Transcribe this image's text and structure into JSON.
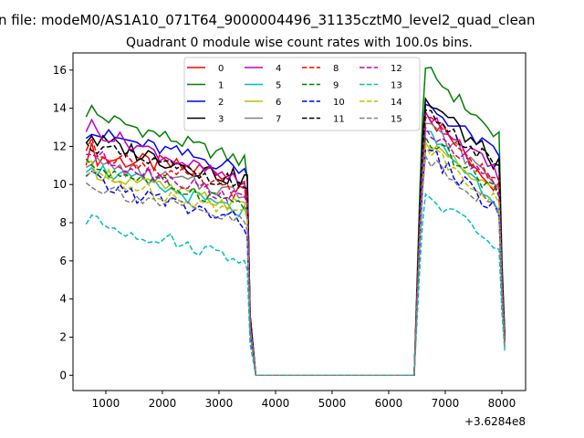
{
  "figure": {
    "suptitle": "n file: modeM0/AS1A10_071T64_9000004496_31135cztM0_level2_quad_clean",
    "x_offset_label": "+3.6284e8"
  },
  "chart_data": {
    "type": "line",
    "title": "Quadrant 0 module wise count rates with 100.0s bins.",
    "xlabel": "",
    "ylabel": "",
    "xlim": [
      420,
      8420
    ],
    "ylim": [
      -0.8,
      16.9
    ],
    "x_ticks": [
      1000,
      2000,
      3000,
      4000,
      5000,
      6000,
      7000,
      8000
    ],
    "y_ticks": [
      0,
      2,
      4,
      6,
      8,
      10,
      12,
      14,
      16
    ],
    "grid": false,
    "legend": {
      "placement": "top-center",
      "columns": 4
    },
    "series": [
      {
        "name": "0",
        "color": "#ff0000",
        "dash": "solid",
        "base": 11.5,
        "amp": 0.5,
        "end": 10.5,
        "drop": 8.8,
        "peak": 13.8,
        "dip": 9.8,
        "last": 2.0
      },
      {
        "name": "1",
        "color": "#008000",
        "dash": "solid",
        "base": 13.8,
        "amp": 0.4,
        "end": 11.2,
        "drop": 10.3,
        "peak": 16.1,
        "dip": 12.4,
        "last": 2.2
      },
      {
        "name": "2",
        "color": "#0000ff",
        "dash": "solid",
        "base": 12.8,
        "amp": 0.4,
        "end": 10.8,
        "drop": 10.4,
        "peak": 14.2,
        "dip": 11.5,
        "last": 2.0
      },
      {
        "name": "3",
        "color": "#000000",
        "dash": "solid",
        "base": 12.4,
        "amp": 0.5,
        "end": 10.2,
        "drop": 10.5,
        "peak": 14.5,
        "dip": 11.0,
        "last": 2.2
      },
      {
        "name": "4",
        "color": "#bf00bf",
        "dash": "solid",
        "base": 13.0,
        "amp": 0.4,
        "end": 10.0,
        "drop": 9.5,
        "peak": 13.8,
        "dip": 10.5,
        "last": 1.8
      },
      {
        "name": "5",
        "color": "#00bfbf",
        "dash": "solid",
        "base": 11.0,
        "amp": 0.4,
        "end": 8.5,
        "drop": 8.2,
        "peak": 12.8,
        "dip": 9.0,
        "last": 1.4
      },
      {
        "name": "6",
        "color": "#bfbf00",
        "dash": "solid",
        "base": 10.8,
        "amp": 0.4,
        "end": 8.8,
        "drop": 8.3,
        "peak": 12.2,
        "dip": 9.5,
        "last": 1.6
      },
      {
        "name": "7",
        "color": "#808080",
        "dash": "solid",
        "base": 11.2,
        "amp": 0.4,
        "end": 9.5,
        "drop": 9.2,
        "peak": 13.2,
        "dip": 10.0,
        "last": 1.8
      },
      {
        "name": "8",
        "color": "#ff0000",
        "dash": "dashed",
        "base": 11.9,
        "amp": 0.4,
        "end": 9.5,
        "drop": 9.0,
        "peak": 13.5,
        "dip": 10.0,
        "last": 1.8
      },
      {
        "name": "9",
        "color": "#008000",
        "dash": "dashed",
        "base": 11.0,
        "amp": 0.4,
        "end": 9.0,
        "drop": 8.8,
        "peak": 12.5,
        "dip": 9.5,
        "last": 1.7
      },
      {
        "name": "10",
        "color": "#0000ff",
        "dash": "dashed",
        "base": 10.2,
        "amp": 0.5,
        "end": 8.0,
        "drop": 7.2,
        "peak": 11.8,
        "dip": 8.5,
        "last": 1.6
      },
      {
        "name": "11",
        "color": "#000000",
        "dash": "dashed",
        "base": 12.0,
        "amp": 0.4,
        "end": 10.0,
        "drop": 9.8,
        "peak": 13.9,
        "dip": 10.8,
        "last": 2.0
      },
      {
        "name": "12",
        "color": "#bf00bf",
        "dash": "dashed",
        "base": 11.6,
        "amp": 0.4,
        "end": 9.2,
        "drop": 8.9,
        "peak": 13.0,
        "dip": 9.8,
        "last": 1.8
      },
      {
        "name": "13",
        "color": "#00bfbf",
        "dash": "dashed",
        "base": 8.1,
        "amp": 0.4,
        "end": 6.1,
        "drop": 5.5,
        "peak": 9.5,
        "dip": 6.7,
        "last": 1.3
      },
      {
        "name": "14",
        "color": "#bfbf00",
        "dash": "dashed",
        "base": 10.5,
        "amp": 0.4,
        "end": 8.5,
        "drop": 8.2,
        "peak": 12.0,
        "dip": 9.0,
        "last": 1.6
      },
      {
        "name": "15",
        "color": "#808080",
        "dash": "dashed",
        "base": 10.0,
        "amp": 0.4,
        "end": 8.0,
        "drop": 7.6,
        "peak": 11.5,
        "dip": 8.6,
        "last": 1.5
      }
    ],
    "segments": {
      "first_start": 650,
      "first_end": 3450,
      "first_drop_x": 3500,
      "zero_start": 3650,
      "zero_end": 6450,
      "second_start": 6550,
      "second_peak_x": 6650,
      "second_end": 7950,
      "last_x": 8050,
      "step": 100
    }
  }
}
